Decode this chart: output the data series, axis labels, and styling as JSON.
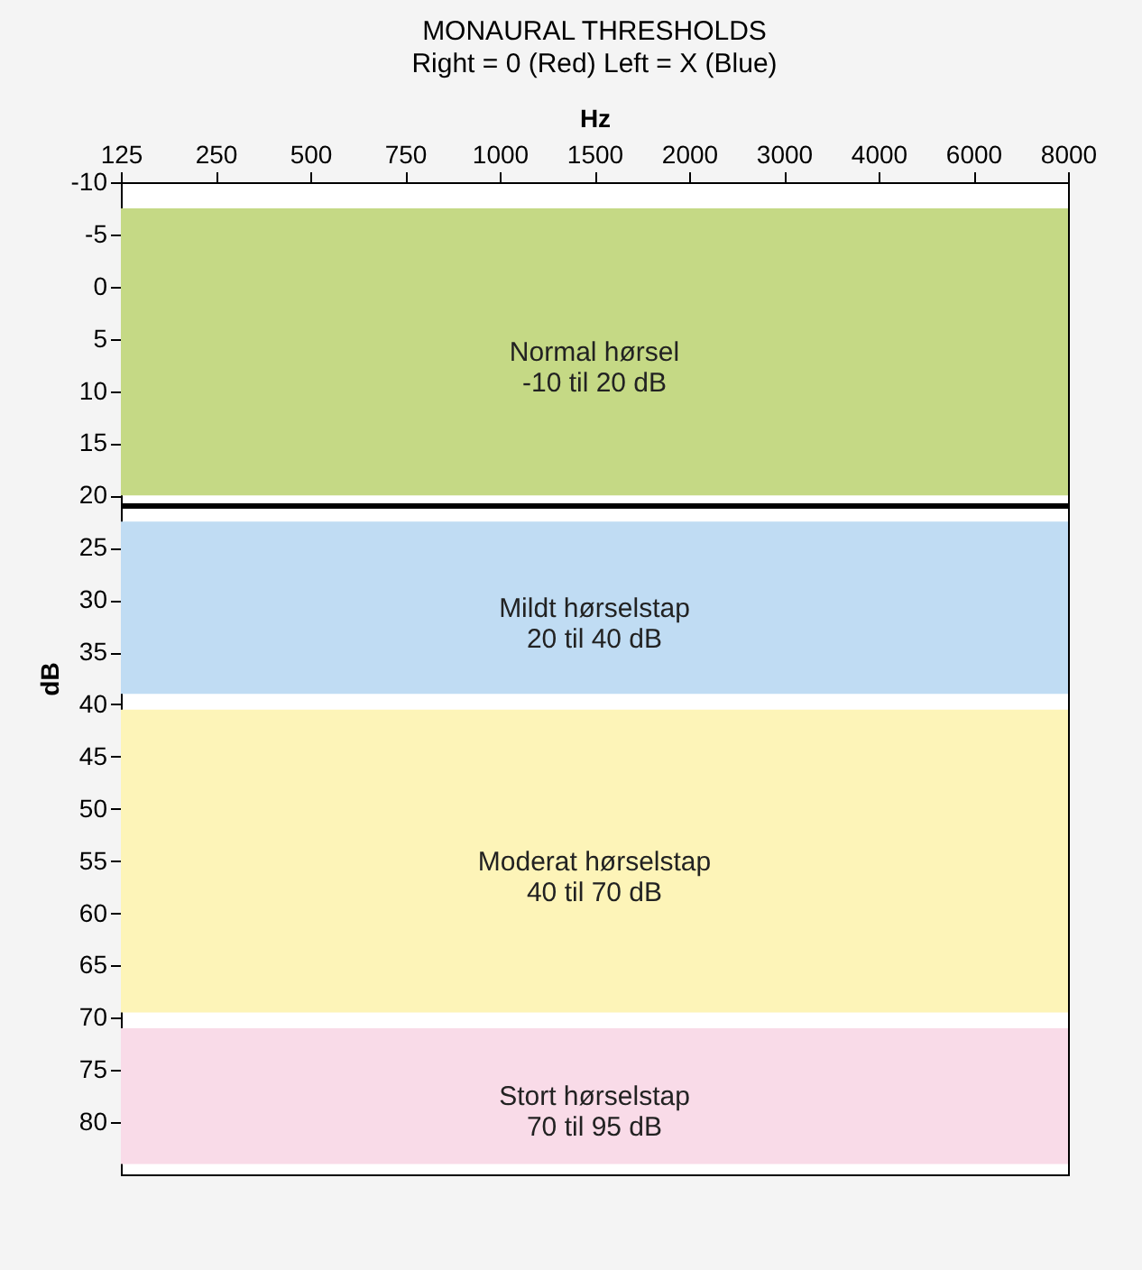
{
  "chart_data": {
    "type": "line",
    "title": "MONAURAL THRESHOLDS",
    "subtitle": "Right = 0 (Red)      Left = X (Blue)",
    "xlabel": "Hz",
    "ylabel": "dB",
    "categories": [
      "125",
      "250",
      "500",
      "750",
      "1000",
      "1500",
      "2000",
      "3000",
      "4000",
      "6000",
      "8000"
    ],
    "ylim": [
      85,
      -10
    ],
    "yticks": [
      -10,
      -5,
      0,
      5,
      10,
      15,
      20,
      25,
      30,
      35,
      40,
      45,
      50,
      55,
      60,
      65,
      70,
      75,
      80
    ],
    "grid": false,
    "bands": [
      {
        "axis": "y",
        "from": -7.5,
        "to": 20,
        "label": "Normal hørsel\n-10 til 20 dB",
        "color": "#c5d985"
      },
      {
        "axis": "y",
        "from": 22.5,
        "to": 39,
        "label": "Mildt hørselstap\n20 til 40 dB",
        "color": "#c0dcf3"
      },
      {
        "axis": "y",
        "from": 40.5,
        "to": 69.5,
        "label": "Moderat hørselstap\n40 til 70 dB",
        "color": "#fdf4b8"
      },
      {
        "axis": "y",
        "from": 71,
        "to": 84,
        "label": "Stort hørselstap\n70 til 95 dB",
        "color": "#f9dbe8"
      }
    ],
    "ref_lines": [
      {
        "axis": "y",
        "value": 21,
        "color": "#000000"
      }
    ]
  }
}
